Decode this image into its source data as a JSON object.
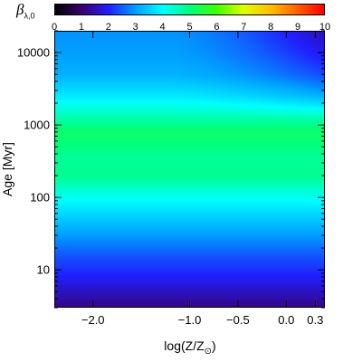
{
  "colorbar": {
    "label_main": "β",
    "label_sub": "λ,0",
    "ticks": [
      "0",
      "1",
      "2",
      "3",
      "4",
      "5",
      "6",
      "7",
      "8",
      "9",
      "10"
    ],
    "range": [
      0,
      10
    ],
    "colormap": [
      "#000000",
      "#3a006e",
      "#2020ff",
      "#00a0ff",
      "#00ffff",
      "#00ff80",
      "#40ff00",
      "#e0ff00",
      "#ffc000",
      "#ff6000",
      "#ff0000"
    ]
  },
  "axes": {
    "xlabel": "log(Z/Z",
    "xlabel_sun": "⊙",
    "xlabel_close": ")",
    "ylabel": "Age [Myr]",
    "xticks": [
      {
        "value": -2.0,
        "label": "−2.0"
      },
      {
        "value": -1.0,
        "label": "−1.0"
      },
      {
        "value": -0.5,
        "label": "−0.5"
      },
      {
        "value": 0.0,
        "label": "0.0"
      },
      {
        "value": 0.3,
        "label": "0.3"
      }
    ],
    "yticks": [
      {
        "value": 10,
        "label": "10"
      },
      {
        "value": 100,
        "label": "100"
      },
      {
        "value": 1000,
        "label": "1000"
      },
      {
        "value": 10000,
        "label": "10000"
      }
    ]
  },
  "chart_data": {
    "type": "heatmap",
    "xlabel": "log(Z/Z⊙)",
    "ylabel": "Age [Myr]",
    "colorbar_label": "βλ,0",
    "xlim": [
      -2.4,
      0.4
    ],
    "ylim": [
      3,
      20000
    ],
    "yscale": "log",
    "zlim": [
      0,
      10
    ],
    "age_profile": [
      {
        "age": 3,
        "value": 1.2
      },
      {
        "age": 5,
        "value": 1.6
      },
      {
        "age": 8,
        "value": 2.0
      },
      {
        "age": 15,
        "value": 2.4
      },
      {
        "age": 30,
        "value": 3.0
      },
      {
        "age": 60,
        "value": 3.6
      },
      {
        "age": 120,
        "value": 4.3
      },
      {
        "age": 200,
        "value": 4.9
      },
      {
        "age": 350,
        "value": 4.8
      },
      {
        "age": 500,
        "value": 5.0
      },
      {
        "age": 800,
        "value": 5.2
      },
      {
        "age": 1300,
        "value": 4.6
      },
      {
        "age": 2500,
        "value": 3.8
      },
      {
        "age": 5000,
        "value": 3.2
      },
      {
        "age": 10000,
        "value": 3.0
      },
      {
        "age": 20000,
        "value": 2.9
      }
    ],
    "metal_rich_old_value": 1.5
  }
}
